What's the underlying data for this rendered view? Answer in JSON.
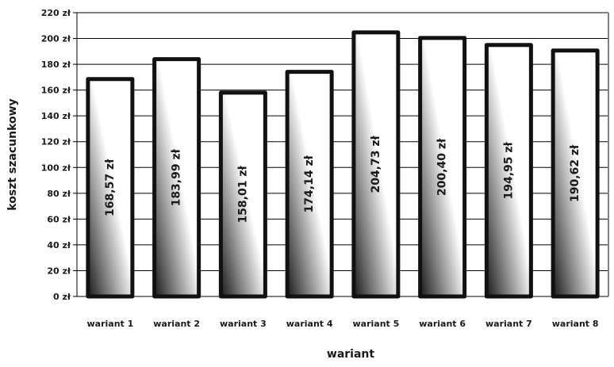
{
  "chart_data": {
    "type": "bar",
    "categories": [
      "wariant 1",
      "wariant 2",
      "wariant 3",
      "wariant 4",
      "wariant 5",
      "wariant 6",
      "wariant 7",
      "wariant 8"
    ],
    "values": [
      168.57,
      183.99,
      158.01,
      174.14,
      204.73,
      200.4,
      194.95,
      190.62
    ],
    "data_labels": [
      "168,57 zł",
      "183,99 zł",
      "158,01 zł",
      "174,14 zł",
      "204,73 zł",
      "200,40 zł",
      "194,95 zł",
      "190,62 zł"
    ],
    "title": "",
    "xlabel": "wariant",
    "ylabel": "koszt szacunkowy",
    "ylim": [
      0,
      220
    ],
    "yticks": [
      0,
      20,
      40,
      60,
      80,
      100,
      120,
      140,
      160,
      180,
      200,
      220
    ],
    "ytick_labels": [
      "0 zł",
      "20 zł",
      "40 zł",
      "60 zł",
      "80 zł",
      "100 zł",
      "120 zł",
      "140 zł",
      "160 zł",
      "180 zł",
      "200 zł",
      "220 zł"
    ],
    "grid": true,
    "legend": "none",
    "colors": {
      "bar_outline": "#111111",
      "bar_gradient_dark": "#1a1a1a",
      "bar_gradient_light": "#ffffff",
      "grid": "#000000",
      "plot_border": "#808080"
    }
  }
}
